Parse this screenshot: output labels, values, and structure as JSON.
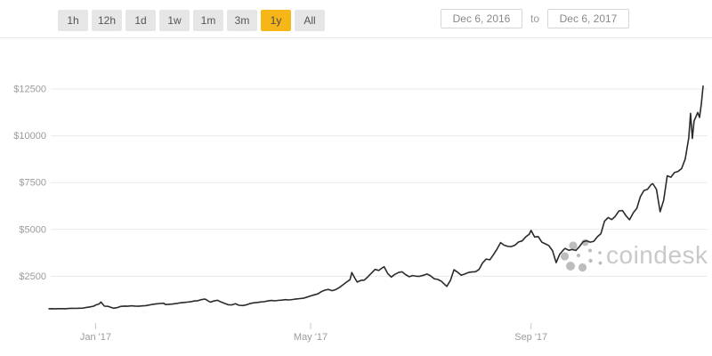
{
  "toolbar": {
    "range_buttons": [
      {
        "label": "1h",
        "active": false
      },
      {
        "label": "12h",
        "active": false
      },
      {
        "label": "1d",
        "active": false
      },
      {
        "label": "1w",
        "active": false
      },
      {
        "label": "1m",
        "active": false
      },
      {
        "label": "3m",
        "active": false
      },
      {
        "label": "1y",
        "active": true
      },
      {
        "label": "All",
        "active": false
      }
    ],
    "date_from": "Dec 6, 2016",
    "date_to_label": "to",
    "date_to": "Dec 6, 2017"
  },
  "watermark": {
    "text": "coindesk",
    "logo": "coindesk-dots-logo"
  },
  "colors": {
    "active_button_bg": "#f7b617",
    "button_bg": "#e6e6e6",
    "line": "#2b2b2b",
    "grid": "#e9e9e9",
    "tick": "#c9c9c9",
    "axis_text": "#9b9b9b",
    "watermark_text": "#c9c9c9",
    "watermark_dots": "#bdbdbd"
  },
  "chart_data": {
    "type": "line",
    "x_start_label": "Dec 6, 2016",
    "x_end_label": "Dec 6, 2017",
    "x_unit": "days_since_start",
    "xlim_days": [
      0,
      365
    ],
    "ylim": [
      0,
      13500
    ],
    "grid": "horizontal",
    "legend": "none",
    "y_ticks": [
      {
        "label": "$2500",
        "value": 2500
      },
      {
        "label": "$5000",
        "value": 5000
      },
      {
        "label": "$7500",
        "value": 7500
      },
      {
        "label": "$10000",
        "value": 10000
      },
      {
        "label": "$12500",
        "value": 12500
      }
    ],
    "x_ticks": [
      {
        "label": "Jan '17",
        "day": 26
      },
      {
        "label": "May '17",
        "day": 146
      },
      {
        "label": "Sep '17",
        "day": 269
      }
    ],
    "series": [
      {
        "name": "price-usd",
        "points": [
          [
            0,
            763
          ],
          [
            2,
            770
          ],
          [
            3,
            757
          ],
          [
            5,
            768
          ],
          [
            7,
            772
          ],
          [
            9,
            766
          ],
          [
            11,
            780
          ],
          [
            13,
            788
          ],
          [
            15,
            782
          ],
          [
            17,
            792
          ],
          [
            19,
            800
          ],
          [
            21,
            835
          ],
          [
            23,
            865
          ],
          [
            25,
            905
          ],
          [
            26,
            960
          ],
          [
            28,
            1020
          ],
          [
            29,
            1125
          ],
          [
            30,
            1010
          ],
          [
            31,
            905
          ],
          [
            33,
            895
          ],
          [
            35,
            825
          ],
          [
            36,
            792
          ],
          [
            38,
            820
          ],
          [
            40,
            890
          ],
          [
            42,
            907
          ],
          [
            44,
            898
          ],
          [
            46,
            922
          ],
          [
            48,
            908
          ],
          [
            50,
            897
          ],
          [
            52,
            918
          ],
          [
            54,
            932
          ],
          [
            56,
            965
          ],
          [
            58,
            1005
          ],
          [
            60,
            1028
          ],
          [
            62,
            1048
          ],
          [
            64,
            1058
          ],
          [
            65,
            988
          ],
          [
            67,
            1002
          ],
          [
            69,
            1018
          ],
          [
            71,
            1042
          ],
          [
            73,
            1078
          ],
          [
            75,
            1098
          ],
          [
            77,
            1118
          ],
          [
            79,
            1138
          ],
          [
            81,
            1178
          ],
          [
            83,
            1192
          ],
          [
            85,
            1252
          ],
          [
            87,
            1282
          ],
          [
            88,
            1232
          ],
          [
            90,
            1118
          ],
          [
            92,
            1178
          ],
          [
            94,
            1218
          ],
          [
            96,
            1128
          ],
          [
            98,
            1052
          ],
          [
            100,
            978
          ],
          [
            102,
            968
          ],
          [
            104,
            1032
          ],
          [
            106,
            952
          ],
          [
            108,
            938
          ],
          [
            110,
            968
          ],
          [
            112,
            1038
          ],
          [
            114,
            1078
          ],
          [
            116,
            1098
          ],
          [
            118,
            1128
          ],
          [
            120,
            1142
          ],
          [
            122,
            1178
          ],
          [
            124,
            1208
          ],
          [
            126,
            1188
          ],
          [
            128,
            1212
          ],
          [
            130,
            1228
          ],
          [
            132,
            1248
          ],
          [
            134,
            1238
          ],
          [
            136,
            1258
          ],
          [
            138,
            1288
          ],
          [
            140,
            1308
          ],
          [
            142,
            1328
          ],
          [
            144,
            1388
          ],
          [
            146,
            1448
          ],
          [
            148,
            1508
          ],
          [
            150,
            1558
          ],
          [
            152,
            1678
          ],
          [
            154,
            1758
          ],
          [
            156,
            1798
          ],
          [
            158,
            1728
          ],
          [
            160,
            1788
          ],
          [
            162,
            1898
          ],
          [
            164,
            2038
          ],
          [
            166,
            2188
          ],
          [
            168,
            2318
          ],
          [
            169,
            2700
          ],
          [
            171,
            2350
          ],
          [
            172,
            2192
          ],
          [
            174,
            2278
          ],
          [
            176,
            2298
          ],
          [
            178,
            2478
          ],
          [
            180,
            2678
          ],
          [
            182,
            2868
          ],
          [
            184,
            2808
          ],
          [
            186,
            2948
          ],
          [
            187,
            3008
          ],
          [
            189,
            2648
          ],
          [
            191,
            2458
          ],
          [
            193,
            2598
          ],
          [
            195,
            2698
          ],
          [
            197,
            2738
          ],
          [
            199,
            2588
          ],
          [
            201,
            2478
          ],
          [
            203,
            2538
          ],
          [
            205,
            2498
          ],
          [
            207,
            2502
          ],
          [
            209,
            2558
          ],
          [
            211,
            2618
          ],
          [
            213,
            2518
          ],
          [
            215,
            2368
          ],
          [
            217,
            2328
          ],
          [
            219,
            2228
          ],
          [
            221,
            2048
          ],
          [
            222,
            1958
          ],
          [
            224,
            2278
          ],
          [
            226,
            2848
          ],
          [
            228,
            2718
          ],
          [
            230,
            2558
          ],
          [
            232,
            2618
          ],
          [
            234,
            2698
          ],
          [
            236,
            2728
          ],
          [
            238,
            2742
          ],
          [
            240,
            2868
          ],
          [
            242,
            3218
          ],
          [
            244,
            3418
          ],
          [
            246,
            3378
          ],
          [
            248,
            3648
          ],
          [
            250,
            3948
          ],
          [
            252,
            4298
          ],
          [
            254,
            4158
          ],
          [
            256,
            4098
          ],
          [
            258,
            4088
          ],
          [
            260,
            4158
          ],
          [
            262,
            4328
          ],
          [
            264,
            4388
          ],
          [
            266,
            4598
          ],
          [
            268,
            4748
          ],
          [
            269,
            4948
          ],
          [
            271,
            4598
          ],
          [
            273,
            4618
          ],
          [
            275,
            4318
          ],
          [
            277,
            4228
          ],
          [
            279,
            4128
          ],
          [
            281,
            3868
          ],
          [
            283,
            3228
          ],
          [
            285,
            3678
          ],
          [
            287,
            3898
          ],
          [
            288,
            3988
          ],
          [
            290,
            3888
          ],
          [
            292,
            3928
          ],
          [
            294,
            3878
          ],
          [
            296,
            4088
          ],
          [
            298,
            4338
          ],
          [
            300,
            4398
          ],
          [
            302,
            4318
          ],
          [
            304,
            4368
          ],
          [
            306,
            4608
          ],
          [
            308,
            4778
          ],
          [
            310,
            5438
          ],
          [
            312,
            5638
          ],
          [
            314,
            5528
          ],
          [
            316,
            5698
          ],
          [
            318,
            5988
          ],
          [
            320,
            6008
          ],
          [
            322,
            5728
          ],
          [
            324,
            5518
          ],
          [
            326,
            5888
          ],
          [
            328,
            6128
          ],
          [
            330,
            6748
          ],
          [
            332,
            7078
          ],
          [
            334,
            7148
          ],
          [
            336,
            7398
          ],
          [
            337,
            7438
          ],
          [
            339,
            7138
          ],
          [
            341,
            5948
          ],
          [
            343,
            6558
          ],
          [
            345,
            7868
          ],
          [
            347,
            7788
          ],
          [
            349,
            8038
          ],
          [
            351,
            8098
          ],
          [
            353,
            8248
          ],
          [
            355,
            8758
          ],
          [
            357,
            9898
          ],
          [
            358,
            11198
          ],
          [
            359,
            9858
          ],
          [
            360,
            10798
          ],
          [
            362,
            11248
          ],
          [
            363,
            10978
          ],
          [
            364,
            11698
          ],
          [
            365,
            12650
          ]
        ]
      }
    ]
  }
}
